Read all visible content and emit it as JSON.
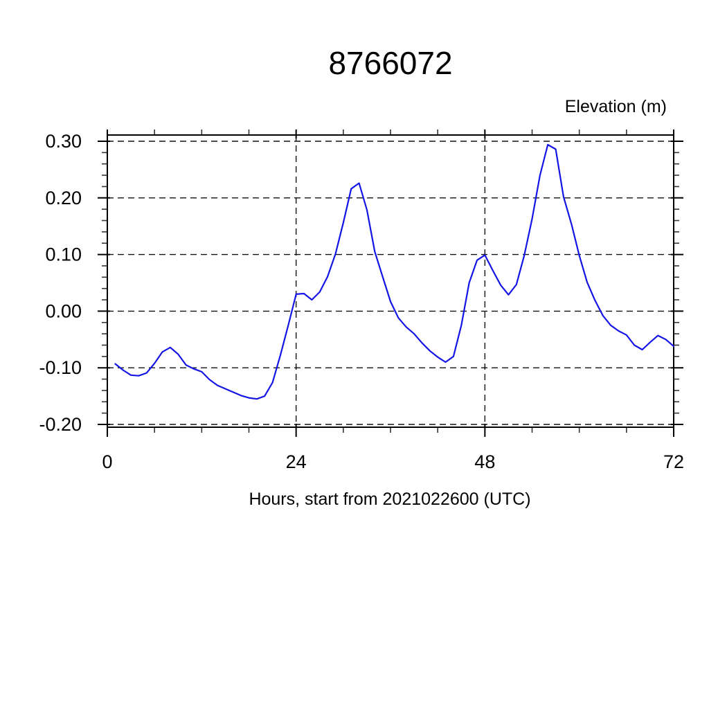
{
  "page": {
    "background": "#ffffff"
  },
  "chart_data": {
    "type": "line",
    "title": "8766072",
    "ylabel": "Elevation (m)",
    "xlabel": "Hours, start from 2021022600 (UTC)",
    "xlim": [
      0,
      72
    ],
    "ylim": [
      -0.2,
      0.3
    ],
    "x_major_ticks": [
      0,
      24,
      48,
      72
    ],
    "x_tick_labels": [
      "0",
      "24",
      "48",
      "72"
    ],
    "x_minor_step": 6,
    "x_gridlines": [
      24,
      48
    ],
    "y_major_ticks": [
      0.3,
      0.2,
      0.1,
      0.0,
      -0.1,
      -0.2
    ],
    "y_tick_labels": [
      "0.30",
      "0.20",
      "0.10",
      "0.00",
      "-0.10",
      "-0.20"
    ],
    "y_minor_step": 0.02,
    "grid_style": "dashed",
    "legend": "none",
    "line_color": "#1414e6",
    "series": [
      {
        "name": "elevation",
        "x": [
          1,
          2,
          3,
          4,
          5,
          6,
          7,
          8,
          9,
          10,
          11,
          12,
          13,
          14,
          15,
          16,
          17,
          18,
          19,
          20,
          21,
          22,
          23,
          24,
          25,
          26,
          27,
          28,
          29,
          30,
          31,
          32,
          33,
          34,
          35,
          36,
          37,
          38,
          39,
          40,
          41,
          42,
          43,
          44,
          45,
          46,
          47,
          48,
          49,
          50,
          51,
          52,
          53,
          54,
          55,
          56,
          57,
          58,
          59,
          60,
          61,
          62,
          63,
          64,
          65,
          66,
          67,
          68,
          69,
          70,
          71,
          72
        ],
        "values": [
          -0.093,
          -0.104,
          -0.113,
          -0.114,
          -0.109,
          -0.092,
          -0.072,
          -0.064,
          -0.076,
          -0.095,
          -0.102,
          -0.107,
          -0.121,
          -0.131,
          -0.137,
          -0.143,
          -0.149,
          -0.153,
          -0.155,
          -0.15,
          -0.126,
          -0.078,
          -0.025,
          0.03,
          0.031,
          0.02,
          0.034,
          0.061,
          0.101,
          0.156,
          0.216,
          0.226,
          0.179,
          0.105,
          0.061,
          0.017,
          -0.012,
          -0.028,
          -0.04,
          -0.056,
          -0.07,
          -0.081,
          -0.09,
          -0.08,
          -0.025,
          0.05,
          0.09,
          0.099,
          0.072,
          0.046,
          0.029,
          0.047,
          0.098,
          0.163,
          0.24,
          0.294,
          0.286,
          0.202,
          0.154,
          0.098,
          0.051,
          0.019,
          -0.008,
          -0.025,
          -0.035,
          -0.042,
          -0.06,
          -0.068,
          -0.055,
          -0.043,
          -0.05,
          -0.062
        ]
      }
    ]
  }
}
